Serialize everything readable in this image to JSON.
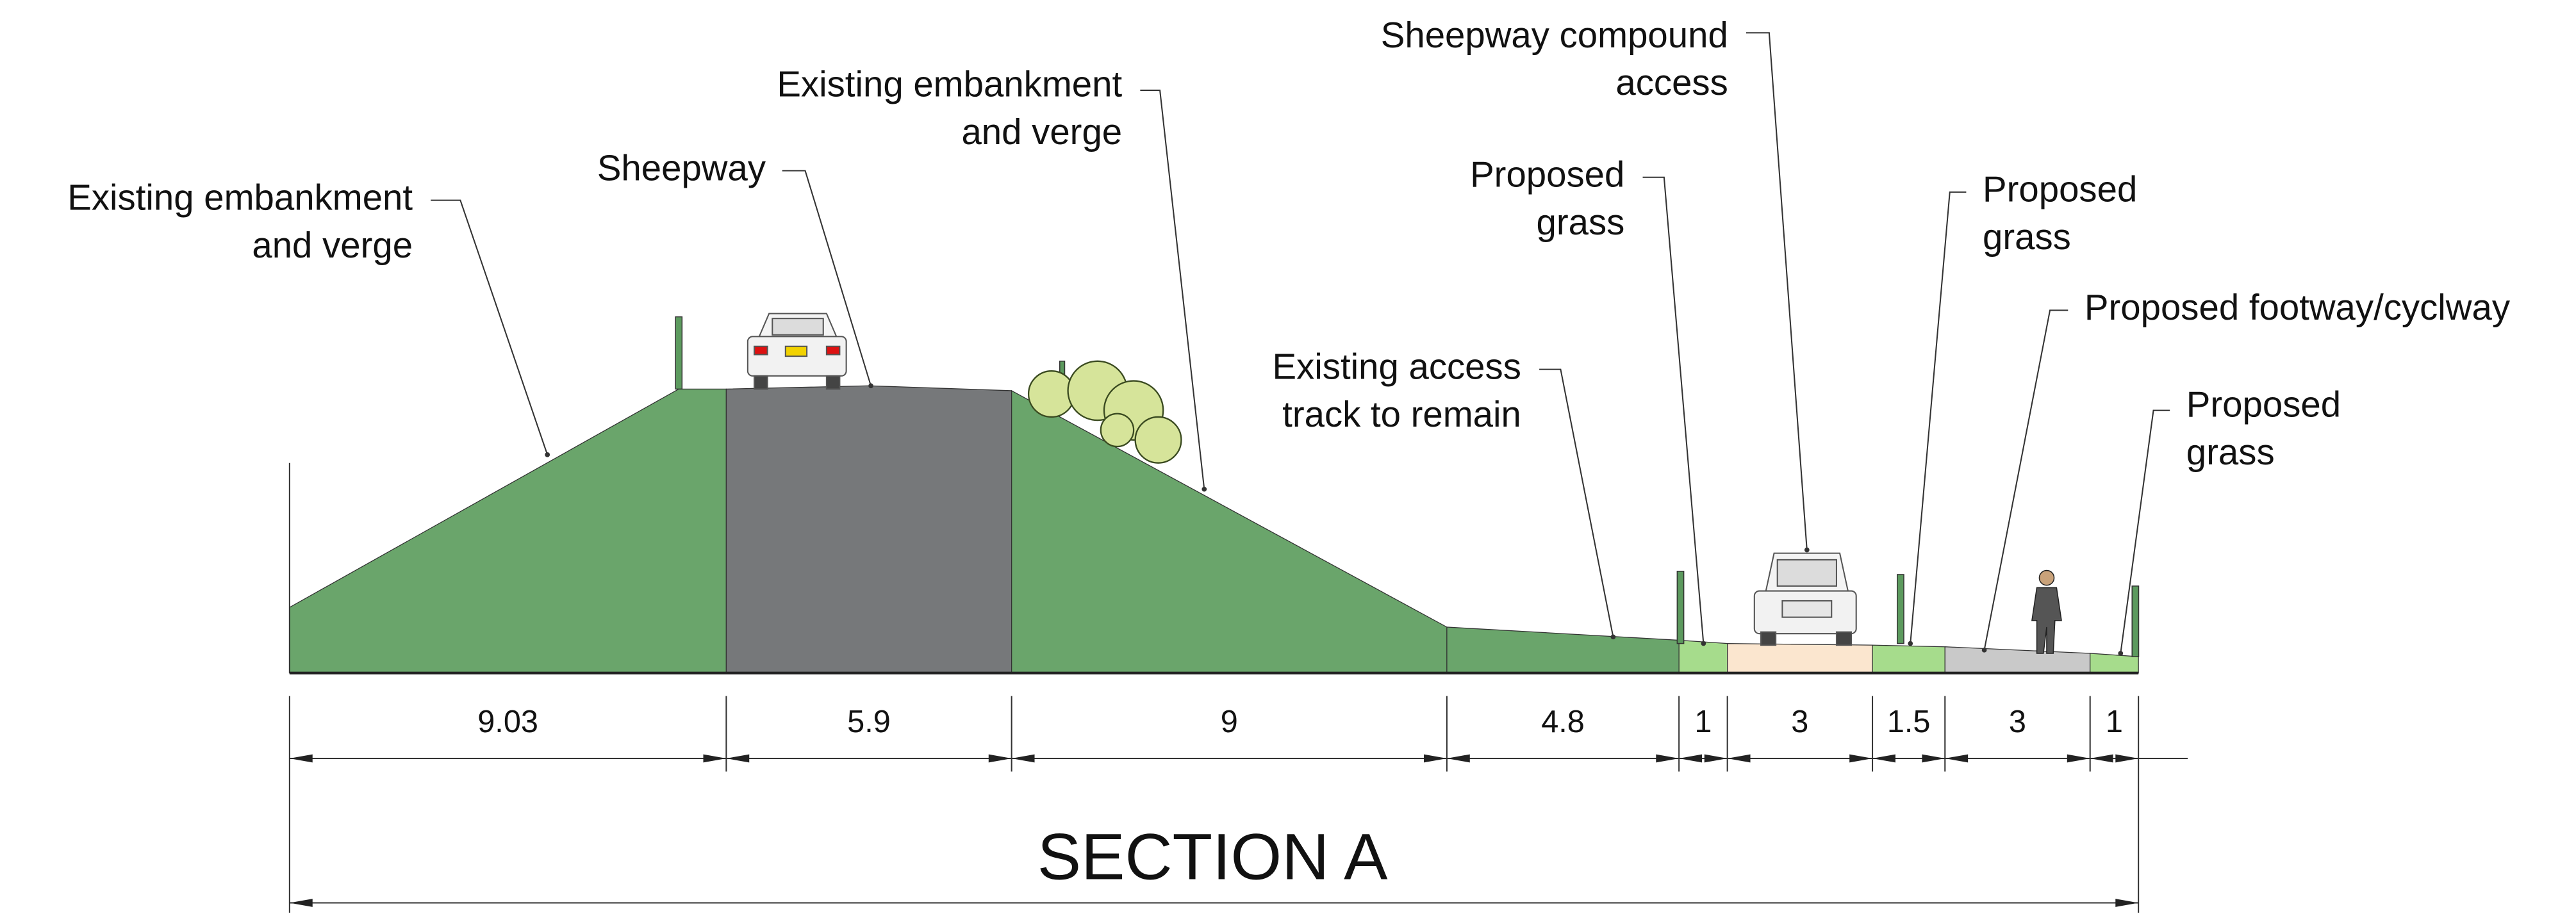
{
  "title": "SECTION A",
  "segments": [
    {
      "width": 9.03,
      "color": "#6aa56b"
    },
    {
      "width": 5.9,
      "color": "#76787a"
    },
    {
      "width": 9,
      "color": "#6aa56b"
    },
    {
      "width": 4.8,
      "color": "#6aa56b"
    },
    {
      "width": 1,
      "color": "#a6dc8c"
    },
    {
      "width": 3,
      "color": "#fbe6cf"
    },
    {
      "width": 1.5,
      "color": "#a6dc8c"
    },
    {
      "width": 3,
      "color": "#c9c9c9"
    },
    {
      "width": 1,
      "color": "#a6dc8c"
    }
  ],
  "labels": [
    {
      "lines": [
        "Existing embankment",
        "and verge"
      ]
    },
    {
      "lines": [
        "Sheepway"
      ]
    },
    {
      "lines": [
        "Existing embankment",
        "and verge"
      ]
    },
    {
      "lines": [
        "Sheepway compound",
        "access"
      ]
    },
    {
      "lines": [
        "Proposed",
        "grass"
      ]
    },
    {
      "lines": [
        "Existing access",
        "track to remain"
      ]
    },
    {
      "lines": [
        "Proposed",
        "grass"
      ]
    },
    {
      "lines": [
        "Proposed footway/cyclway"
      ]
    },
    {
      "lines": [
        "Proposed",
        "grass"
      ]
    }
  ]
}
